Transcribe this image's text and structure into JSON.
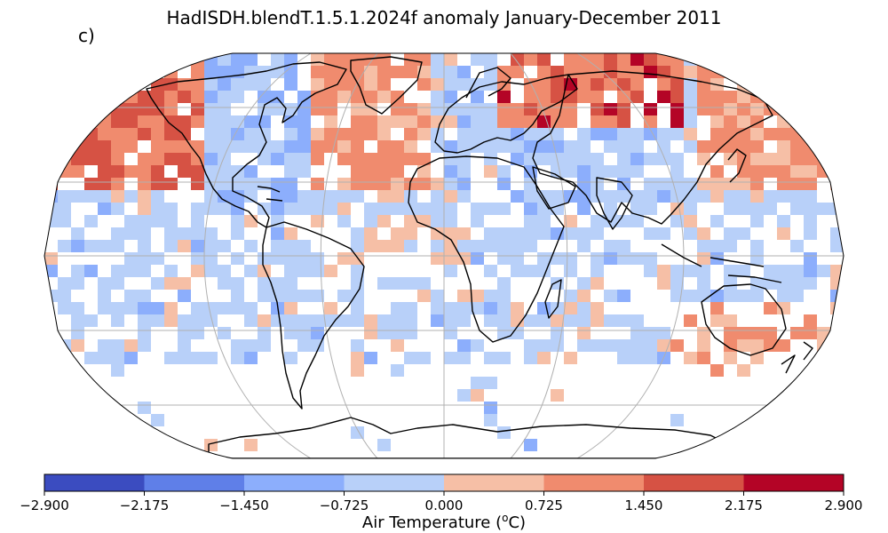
{
  "title": "HadISDH.blendT.1.5.1.2024f anomaly January-December 2011",
  "panel_label": "c)",
  "colorbar": {
    "label_prefix": "Air Temperature (",
    "label_sup": "o",
    "label_suffix": "C)",
    "ticks": [
      "−2.900",
      "−2.175",
      "−1.450",
      "−0.725",
      "0.000",
      "0.725",
      "1.450",
      "2.175",
      "2.900"
    ],
    "colors": [
      "#3b4cc0",
      "#5f7fe8",
      "#8caefc",
      "#b8d0f9",
      "#f6bfa6",
      "#f08b6e",
      "#d65244",
      "#b40426"
    ]
  },
  "map": {
    "projection": "Robinson",
    "land_fill": "none",
    "grid": true
  }
}
